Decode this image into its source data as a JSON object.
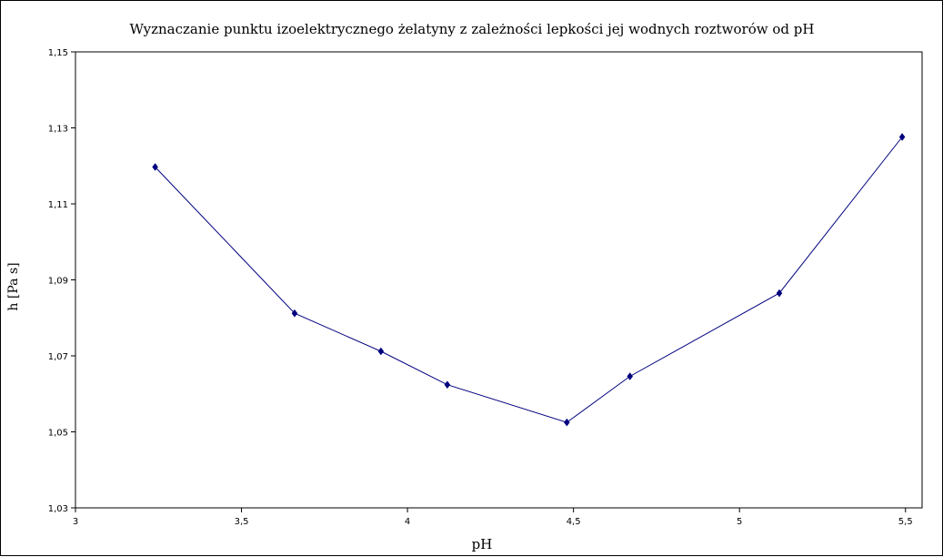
{
  "chart_data": {
    "type": "line",
    "title": "Wyznaczanie punktu izoelektrycznego żelatyny z zależności lepkości jej wodnych roztworów od pH",
    "xlabel": "pH",
    "ylabel": "h [Pa s]",
    "xlim": [
      3,
      5.55
    ],
    "ylim": [
      1.03,
      1.15
    ],
    "x_ticks": [
      "3",
      "3,5",
      "4",
      "4,5",
      "5",
      "5,5"
    ],
    "x_tick_values": [
      3,
      3.5,
      4,
      4.5,
      5,
      5.5
    ],
    "y_ticks": [
      "1,03",
      "1,05",
      "1,07",
      "1,09",
      "1,11",
      "1,13",
      "1,15"
    ],
    "y_tick_values": [
      1.03,
      1.05,
      1.07,
      1.09,
      1.11,
      1.13,
      1.15
    ],
    "grid": false,
    "legend": "none",
    "series": [
      {
        "x": [
          3.24,
          3.66,
          3.92,
          4.12,
          4.48,
          4.67,
          5.12,
          5.49
        ],
        "y": [
          1.1197,
          1.0812,
          1.0712,
          1.0624,
          1.0525,
          1.0646,
          1.0865,
          1.1276
        ],
        "color": "#00007f",
        "marker": "diamond"
      }
    ]
  }
}
